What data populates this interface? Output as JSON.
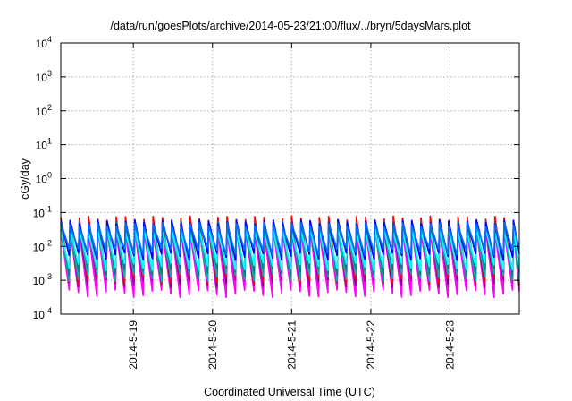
{
  "chart_data": {
    "type": "line",
    "title": "/data/run/goesPlots/archive/2014-05-23/21:00/flux/../bryn/5daysMars.plot",
    "xlabel": "Coordinated Universal Time (UTC)",
    "ylabel": "cGy/day",
    "yscale": "log",
    "ylim": [
      0.0001,
      10000
    ],
    "xlim": [
      "2014-05-18T02:00",
      "2014-05-23T21:00"
    ],
    "grid": true,
    "legend": "none",
    "y_ticks": [
      {
        "base": "10",
        "exp": "-4",
        "value": 0.0001
      },
      {
        "base": "10",
        "exp": "-3",
        "value": 0.001
      },
      {
        "base": "10",
        "exp": "-2",
        "value": 0.01
      },
      {
        "base": "10",
        "exp": "-1",
        "value": 0.1
      },
      {
        "base": "10",
        "exp": "0",
        "value": 1
      },
      {
        "base": "10",
        "exp": "1",
        "value": 10
      },
      {
        "base": "10",
        "exp": "2",
        "value": 100
      },
      {
        "base": "10",
        "exp": "3",
        "value": 1000
      },
      {
        "base": "10",
        "exp": "4",
        "value": 10000
      }
    ],
    "x_ticks": [
      {
        "label": "2014-5-19",
        "value": "2014-05-19T00:00"
      },
      {
        "label": "2014-5-20",
        "value": "2014-05-20T00:00"
      },
      {
        "label": "2014-5-21",
        "value": "2014-05-21T00:00"
      },
      {
        "label": "2014-5-22",
        "value": "2014-05-22T00:00"
      },
      {
        "label": "2014-5-23",
        "value": "2014-05-23T00:00"
      }
    ],
    "sawtooth_period_hours": 2.8,
    "series": [
      {
        "color": "#ff00ff",
        "peak": 0.03,
        "trough": 0.0004
      },
      {
        "color": "#ff00ff",
        "peak": 0.034,
        "trough": 0.00055
      },
      {
        "color": "#800080",
        "peak": 0.045,
        "trough": 0.0008
      },
      {
        "color": "#ff0000",
        "peak": 0.07,
        "trough": 0.001
      },
      {
        "color": "#00b0b0",
        "peak": 0.035,
        "trough": 0.0012
      },
      {
        "color": "#008080",
        "peak": 0.05,
        "trough": 0.0018
      },
      {
        "color": "#00ffff",
        "peak": 0.03,
        "trough": 0.0025
      },
      {
        "color": "#0000ff",
        "peak": 0.055,
        "trough": 0.005
      },
      {
        "color": "#0070ff",
        "peak": 0.045,
        "trough": 0.007
      }
    ]
  }
}
